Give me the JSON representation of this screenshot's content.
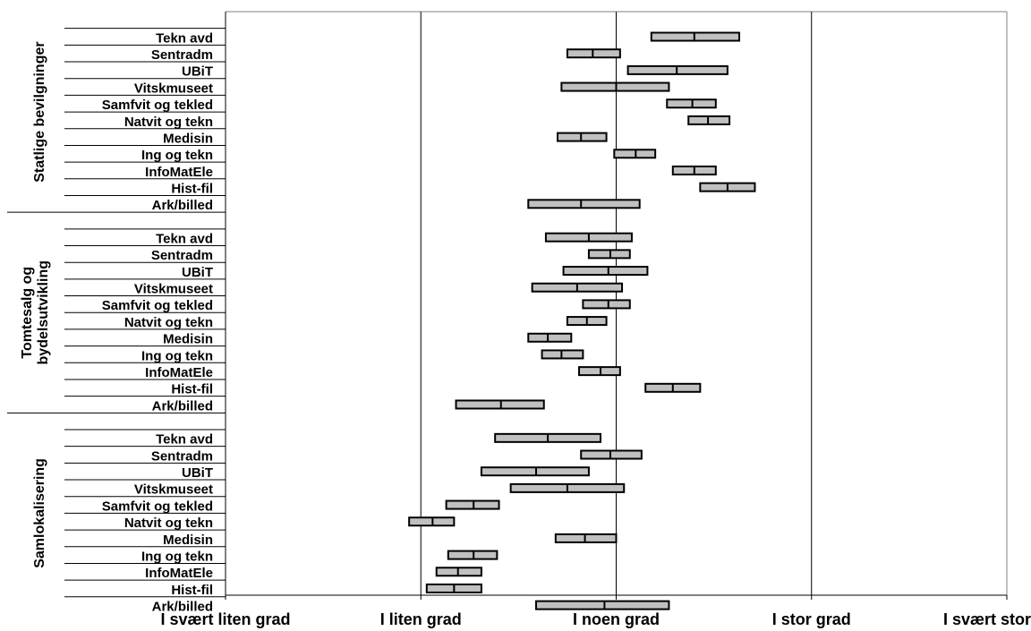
{
  "chart_data": {
    "type": "range-bar",
    "x_scale": {
      "min": 1,
      "max": 5
    },
    "x_tick_labels": [
      "I svært liten grad",
      "I liten grad",
      "I noen grad",
      "I stor grad",
      "I svært stor grad"
    ],
    "vertical_gridlines_at": [
      2,
      3,
      4
    ],
    "groups": [
      {
        "name": "Statlige bevilgninger",
        "rows": [
          {
            "label": "Tekn avd",
            "low": 3.18,
            "mid": 3.4,
            "high": 3.63
          },
          {
            "label": "Sentradm",
            "low": 2.75,
            "mid": 2.88,
            "high": 3.02
          },
          {
            "label": "UBiT",
            "low": 3.06,
            "mid": 3.31,
            "high": 3.57
          },
          {
            "label": "Vitskmuseet",
            "low": 2.72,
            "mid": 3.0,
            "high": 3.27
          },
          {
            "label": "Samfvit og tekled",
            "low": 3.26,
            "mid": 3.39,
            "high": 3.51
          },
          {
            "label": "Natvit og tekn",
            "low": 3.37,
            "mid": 3.47,
            "high": 3.58
          },
          {
            "label": "Medisin",
            "low": 2.7,
            "mid": 2.82,
            "high": 2.95
          },
          {
            "label": "Ing og tekn",
            "low": 2.99,
            "mid": 3.1,
            "high": 3.2
          },
          {
            "label": "InfoMatEle",
            "low": 3.29,
            "mid": 3.4,
            "high": 3.51
          },
          {
            "label": "Hist-fil",
            "low": 3.43,
            "mid": 3.57,
            "high": 3.71
          },
          {
            "label": "Ark/billed",
            "low": 2.55,
            "mid": 2.82,
            "high": 3.12
          }
        ]
      },
      {
        "name": "Tomtesalg og bydelsutvikling",
        "rows": [
          {
            "label": "Tekn avd",
            "low": 2.64,
            "mid": 2.86,
            "high": 3.08
          },
          {
            "label": "Sentradm",
            "low": 2.86,
            "mid": 2.97,
            "high": 3.07
          },
          {
            "label": "UBiT",
            "low": 2.73,
            "mid": 2.96,
            "high": 3.16
          },
          {
            "label": "Vitskmuseet",
            "low": 2.57,
            "mid": 2.8,
            "high": 3.03
          },
          {
            "label": "Samfvit og tekled",
            "low": 2.83,
            "mid": 2.96,
            "high": 3.07
          },
          {
            "label": "Natvit og tekn",
            "low": 2.75,
            "mid": 2.85,
            "high": 2.95
          },
          {
            "label": "Medisin",
            "low": 2.55,
            "mid": 2.65,
            "high": 2.77
          },
          {
            "label": "Ing og tekn",
            "low": 2.62,
            "mid": 2.72,
            "high": 2.83
          },
          {
            "label": "InfoMatEle",
            "low": 2.81,
            "mid": 2.92,
            "high": 3.02
          },
          {
            "label": "Hist-fil",
            "low": 3.15,
            "mid": 3.29,
            "high": 3.43
          },
          {
            "label": "Ark/billed",
            "low": 2.18,
            "mid": 2.41,
            "high": 2.63
          }
        ]
      },
      {
        "name": "Samlokalisering",
        "rows": [
          {
            "label": "Tekn avd",
            "low": 2.38,
            "mid": 2.65,
            "high": 2.92
          },
          {
            "label": "Sentradm",
            "low": 2.82,
            "mid": 2.97,
            "high": 3.13
          },
          {
            "label": "UBiT",
            "low": 2.31,
            "mid": 2.59,
            "high": 2.86
          },
          {
            "label": "Vitskmuseet",
            "low": 2.46,
            "mid": 2.75,
            "high": 3.04
          },
          {
            "label": "Samfvit og tekled",
            "low": 2.13,
            "mid": 2.27,
            "high": 2.4
          },
          {
            "label": "Natvit og tekn",
            "low": 1.94,
            "mid": 2.06,
            "high": 2.17
          },
          {
            "label": "Medisin",
            "low": 2.69,
            "mid": 2.84,
            "high": 3.0
          },
          {
            "label": "Ing og tekn",
            "low": 2.14,
            "mid": 2.27,
            "high": 2.39
          },
          {
            "label": "InfoMatEle",
            "low": 2.08,
            "mid": 2.19,
            "high": 2.31
          },
          {
            "label": "Hist-fil",
            "low": 2.03,
            "mid": 2.17,
            "high": 2.31
          },
          {
            "label": "Ark/billed",
            "low": 2.59,
            "mid": 2.94,
            "high": 3.27
          }
        ]
      }
    ],
    "bar_color": "#c0c0c0",
    "bar_stroke": "#000000"
  }
}
